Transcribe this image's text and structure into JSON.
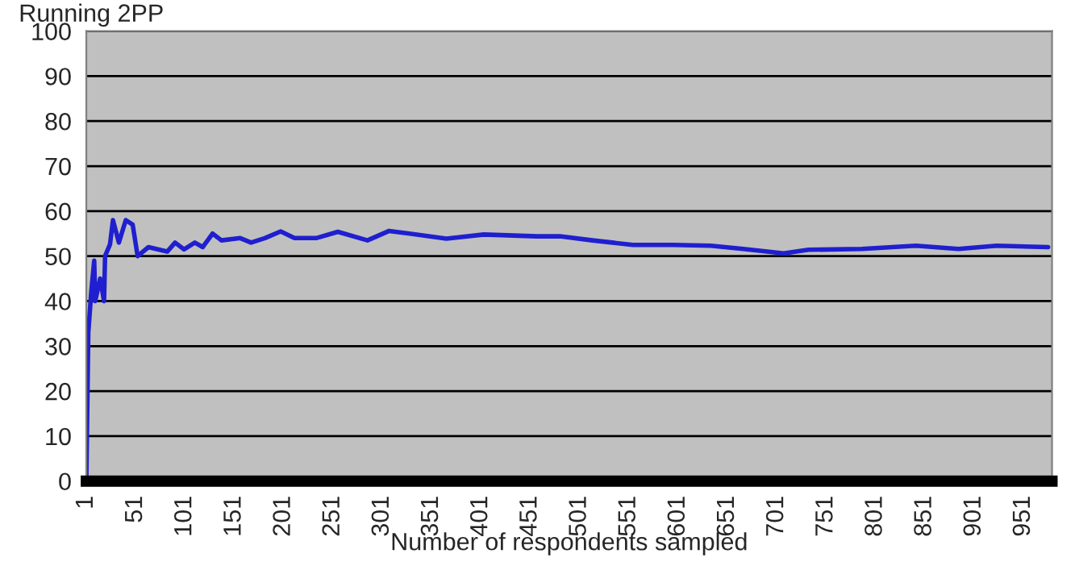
{
  "chart_data": {
    "type": "line",
    "ylabel": "Running 2PP",
    "xlabel": "Number of respondents sampled",
    "series": [
      {
        "color": "#1f1fd0",
        "x": [
          1,
          3,
          6,
          9,
          10,
          15,
          19,
          20,
          25,
          28,
          34,
          41,
          48,
          53,
          64,
          83,
          91,
          100,
          111,
          119,
          129,
          138,
          157,
          168,
          182,
          198,
          212,
          234,
          256,
          286,
          308,
          366,
          404,
          458,
          481,
          514,
          555,
          596,
          634,
          667,
          708,
          733,
          787,
          842,
          885,
          924,
          976
        ],
        "values": [
          0,
          33,
          42,
          49,
          40,
          45,
          40,
          50,
          52.6,
          58,
          53,
          58,
          57,
          50,
          52,
          51,
          53,
          51.5,
          53,
          52,
          55,
          53.5,
          54,
          53,
          54,
          55.5,
          54,
          54,
          55.4,
          53.5,
          55.6,
          53.9,
          54.8,
          54.4,
          54.4,
          53.5,
          52.5,
          52.5,
          52.3,
          51.6,
          50.6,
          51.4,
          51.6,
          52.3,
          51.6,
          52.3,
          52
        ]
      }
    ],
    "xlim": [
      1,
      980
    ],
    "xticks": [
      1,
      51,
      101,
      151,
      201,
      251,
      301,
      351,
      401,
      451,
      501,
      551,
      601,
      651,
      701,
      751,
      801,
      851,
      901,
      951
    ],
    "ylim": [
      0,
      100
    ],
    "yticks": [
      0,
      10,
      20,
      30,
      40,
      50,
      60,
      70,
      80,
      90,
      100
    ],
    "grid": "y",
    "legend": false,
    "marker": "none",
    "line_style": "solid"
  }
}
